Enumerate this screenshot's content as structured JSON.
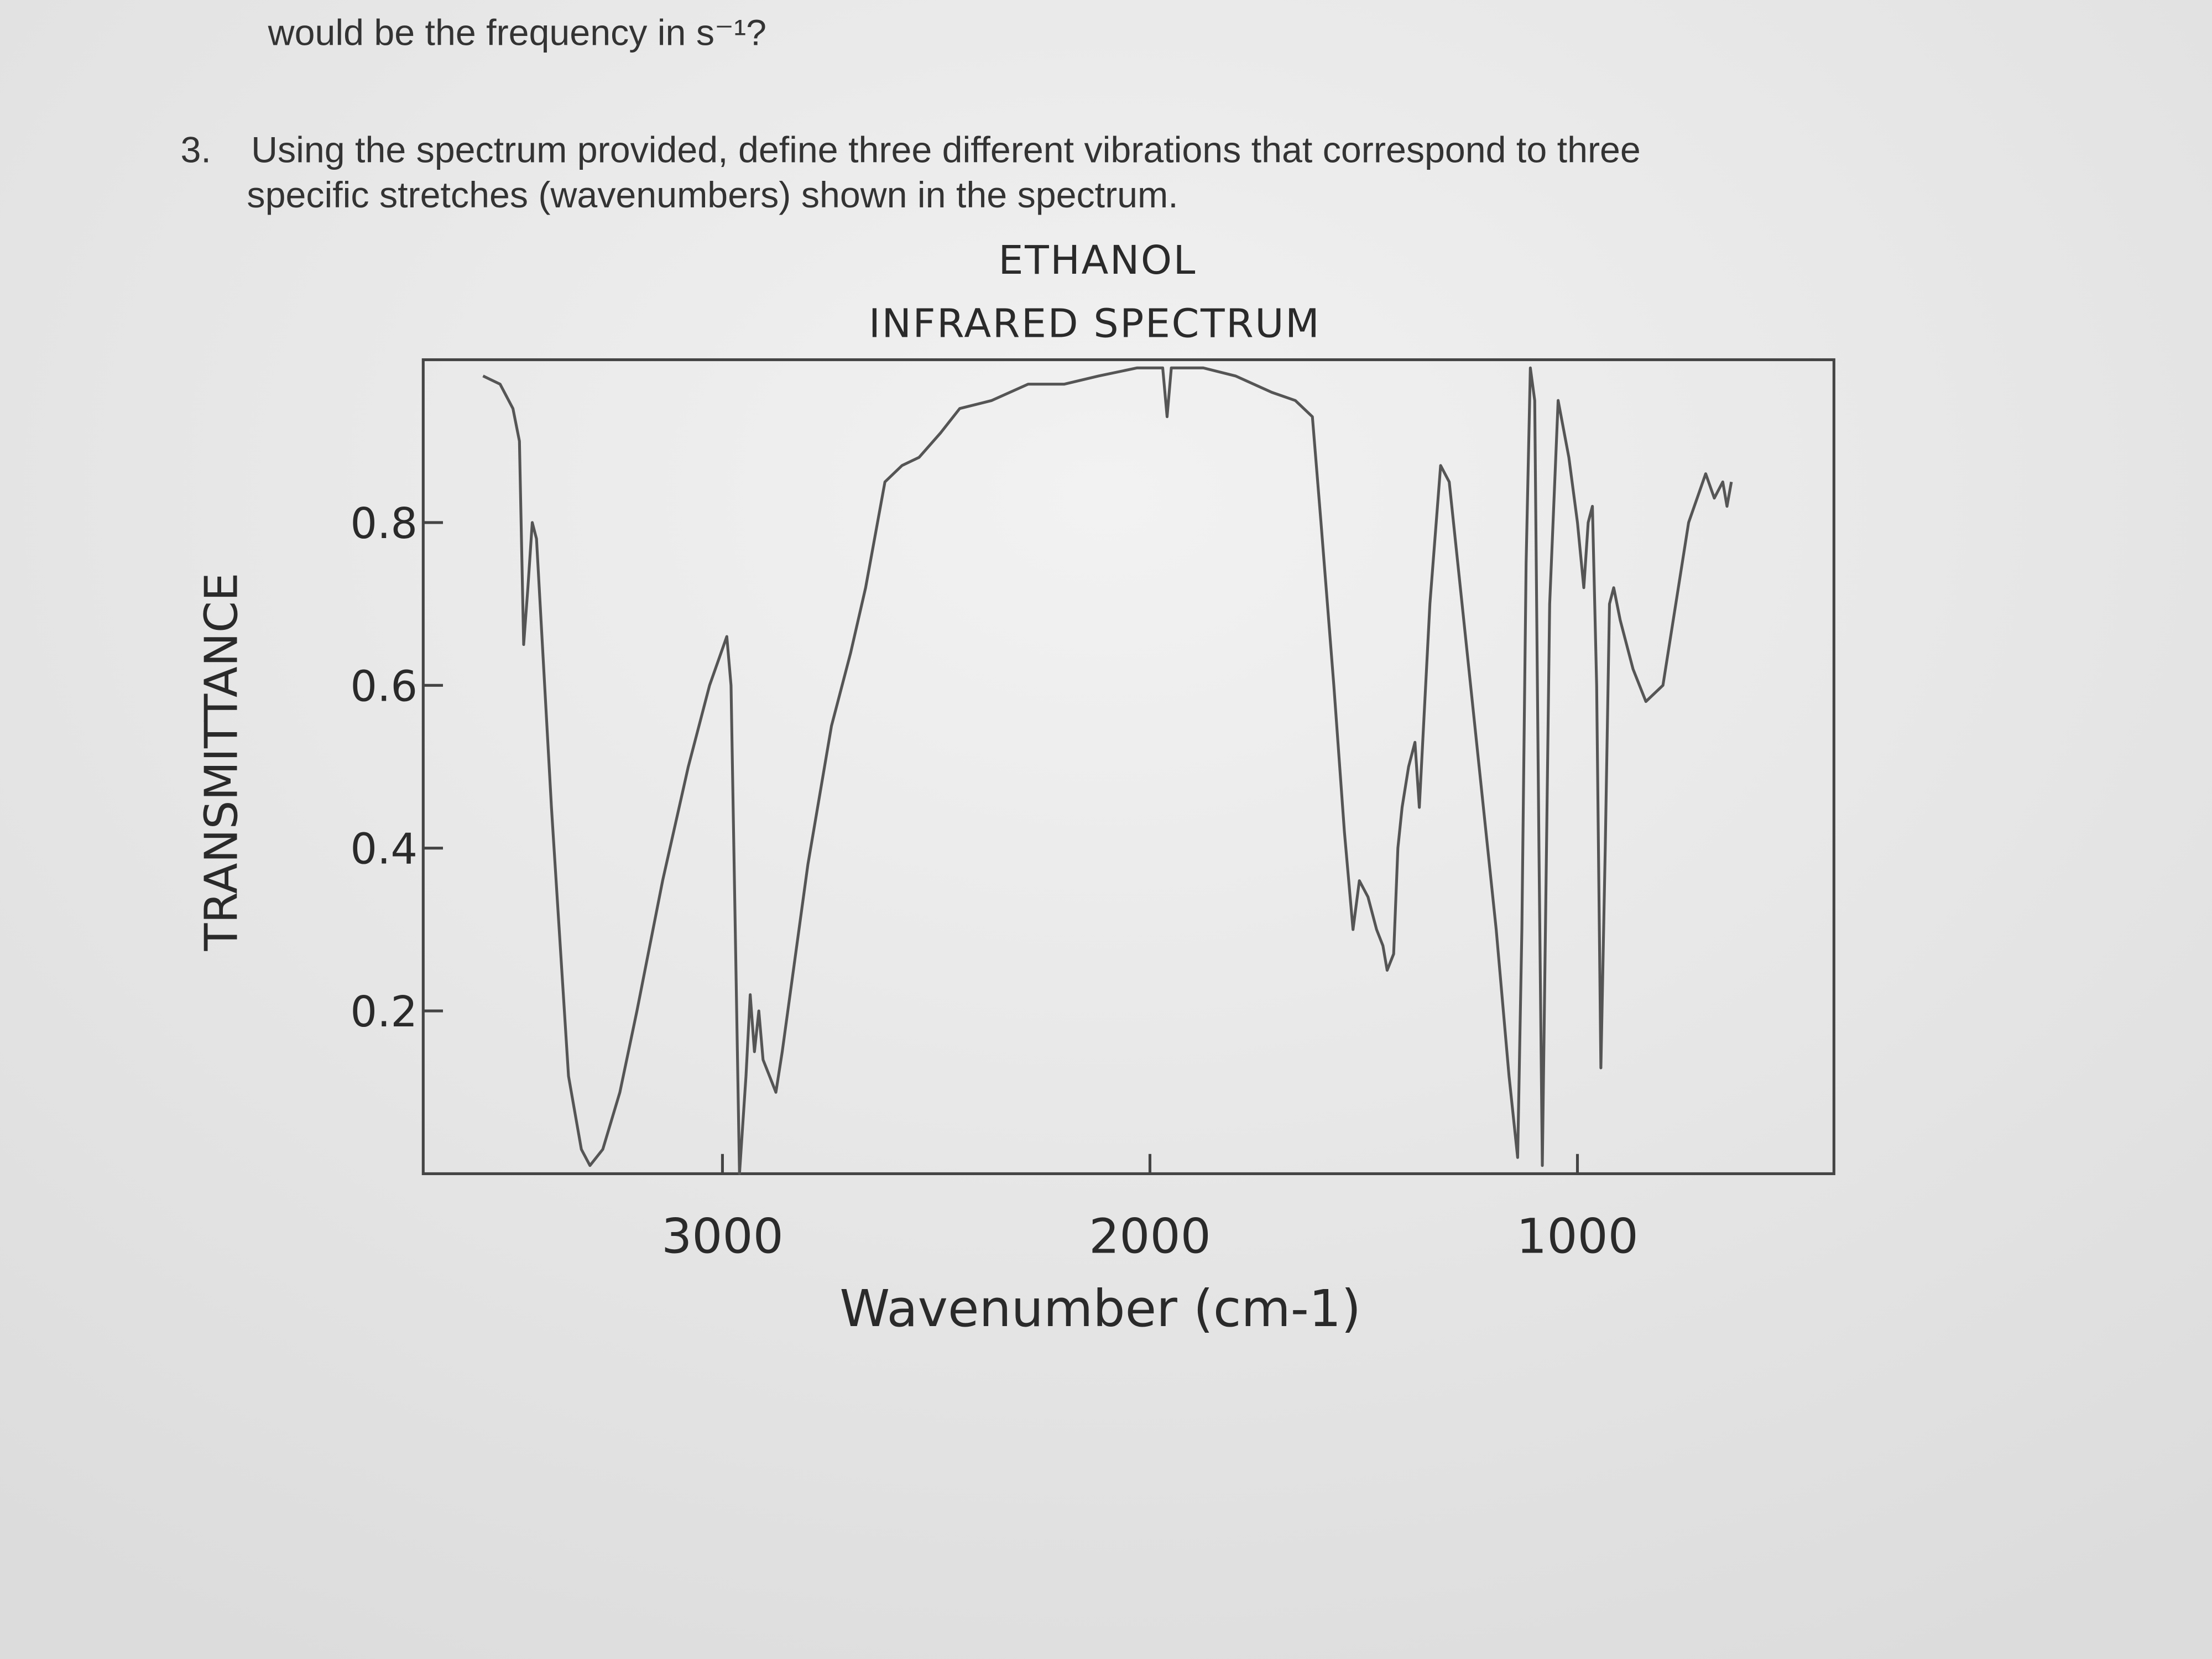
{
  "document": {
    "previous_question_end": "would be the frequency in s⁻¹?",
    "question": {
      "number": "3.",
      "lines": [
        "Using the spectrum provided, define three different vibrations that correspond to three",
        "specific stretches (wavenumbers) shown in the spectrum."
      ]
    }
  },
  "chart_data": {
    "type": "line",
    "title": "ETHANOL",
    "subtitle": "INFRARED SPECTRUM",
    "x_label": "Wavenumber (cm-1)",
    "y_label": "TRANSMITTANCE",
    "x": [
      3560,
      3520,
      3490,
      3475,
      3465,
      3455,
      3445,
      3435,
      3400,
      3360,
      3330,
      3310,
      3280,
      3240,
      3200,
      3140,
      3080,
      3030,
      2990,
      2980,
      2970,
      2960,
      2945,
      2935,
      2925,
      2915,
      2905,
      2890,
      2875,
      2860,
      2800,
      2745,
      2700,
      2665,
      2620,
      2580,
      2540,
      2490,
      2445,
      2370,
      2285,
      2200,
      2120,
      2030,
      1990,
      1970,
      1960,
      1950,
      1930,
      1875,
      1800,
      1715,
      1660,
      1620,
      1600,
      1570,
      1545,
      1525,
      1510,
      1490,
      1470,
      1455,
      1445,
      1430,
      1420,
      1410,
      1395,
      1380,
      1370,
      1360,
      1345,
      1320,
      1300,
      1270,
      1230,
      1190,
      1160,
      1140,
      1130,
      1120,
      1110,
      1100,
      1090,
      1082,
      1075,
      1065,
      1045,
      1020,
      1000,
      985,
      975,
      965,
      955,
      945,
      935,
      925,
      915,
      900,
      870,
      840,
      800,
      770,
      740,
      700,
      680,
      660,
      650,
      640
    ],
    "values": [
      0.98,
      0.97,
      0.94,
      0.9,
      0.65,
      0.72,
      0.8,
      0.78,
      0.45,
      0.12,
      0.03,
      0.01,
      0.03,
      0.1,
      0.2,
      0.36,
      0.5,
      0.6,
      0.66,
      0.6,
      0.3,
      0.0,
      0.12,
      0.22,
      0.15,
      0.2,
      0.14,
      0.12,
      0.1,
      0.15,
      0.38,
      0.55,
      0.64,
      0.72,
      0.85,
      0.87,
      0.88,
      0.91,
      0.94,
      0.95,
      0.97,
      0.97,
      0.98,
      0.99,
      0.99,
      0.99,
      0.93,
      0.99,
      0.99,
      0.99,
      0.98,
      0.96,
      0.95,
      0.93,
      0.8,
      0.6,
      0.42,
      0.3,
      0.36,
      0.34,
      0.3,
      0.28,
      0.25,
      0.27,
      0.4,
      0.45,
      0.5,
      0.53,
      0.45,
      0.55,
      0.7,
      0.87,
      0.85,
      0.7,
      0.5,
      0.3,
      0.12,
      0.02,
      0.3,
      0.75,
      0.99,
      0.95,
      0.4,
      0.01,
      0.3,
      0.7,
      0.95,
      0.88,
      0.8,
      0.72,
      0.8,
      0.82,
      0.6,
      0.13,
      0.4,
      0.7,
      0.72,
      0.68,
      0.62,
      0.58,
      0.6,
      0.7,
      0.8,
      0.86,
      0.83,
      0.85,
      0.82,
      0.85
    ],
    "color": "#555555",
    "xlim": [
      3700,
      400
    ],
    "xticks": [
      3000,
      2000,
      1000
    ],
    "ylim": [
      0,
      1
    ],
    "yticks": [
      0.2,
      0.4,
      0.6,
      0.8
    ]
  }
}
